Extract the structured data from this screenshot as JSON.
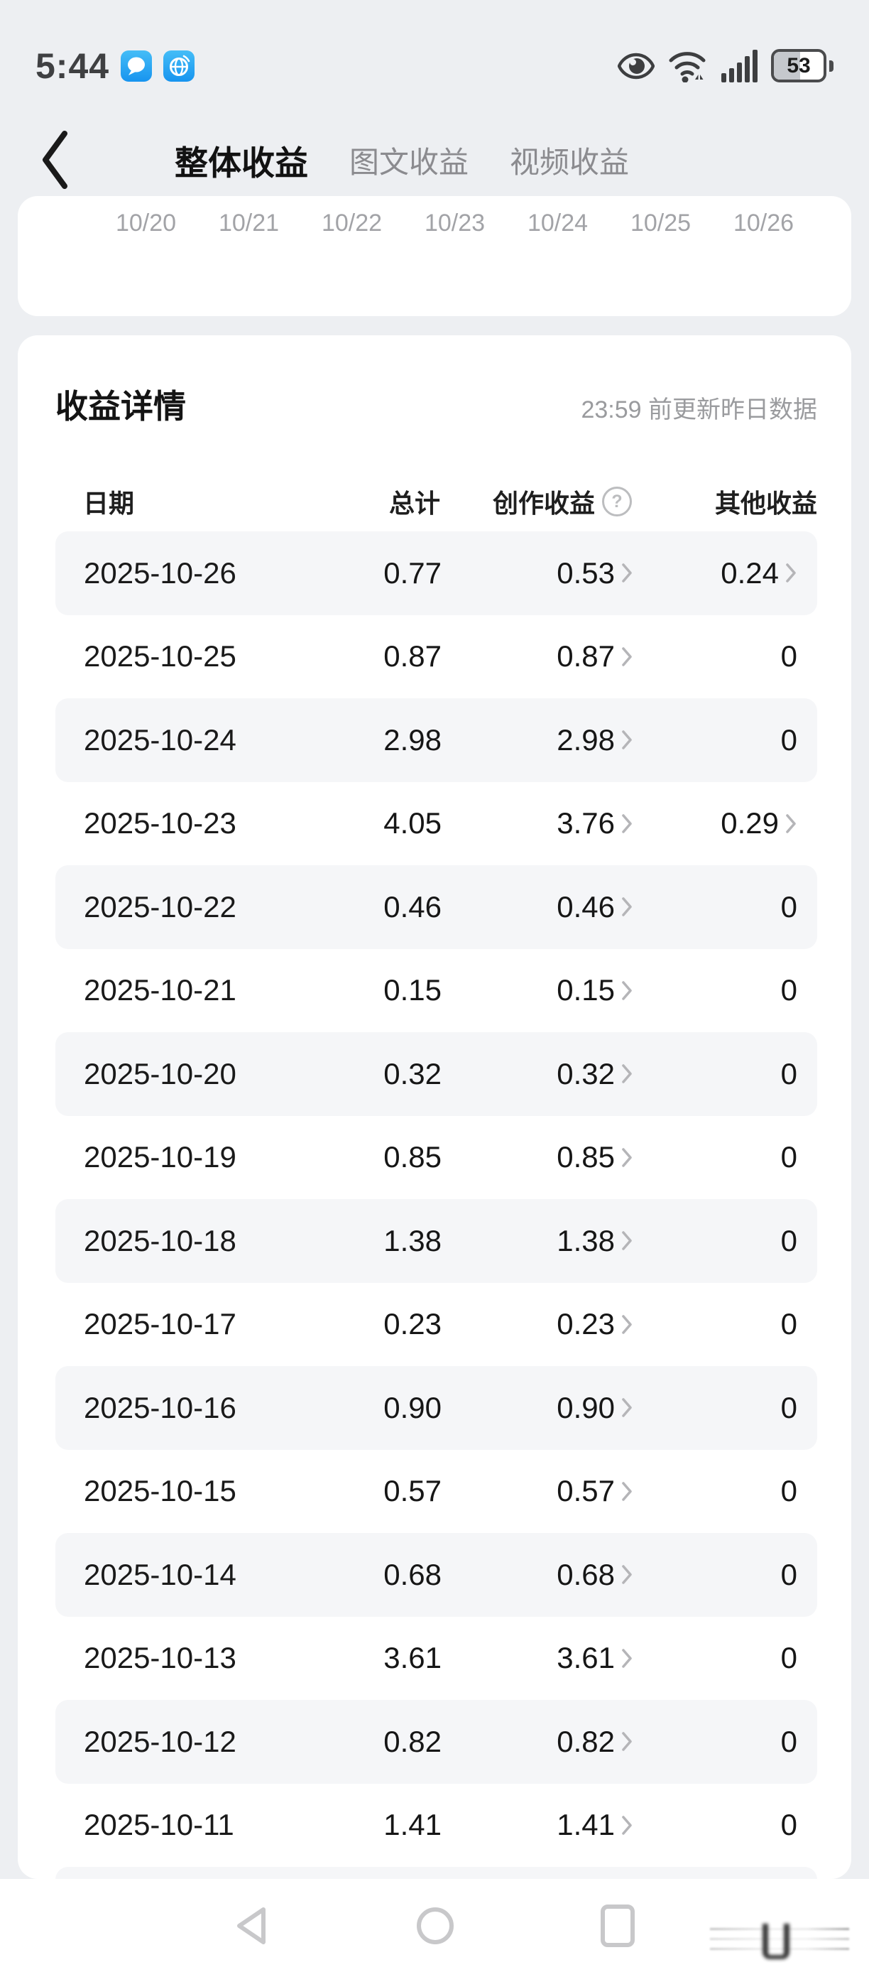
{
  "status_bar": {
    "time": "5:44",
    "battery_percent": "53"
  },
  "nav_header": {
    "tabs": [
      {
        "label": "整体收益",
        "active": true
      },
      {
        "label": "图文收益",
        "active": false
      },
      {
        "label": "视频收益",
        "active": false
      }
    ]
  },
  "chart_card": {
    "x_labels": [
      "10/20",
      "10/21",
      "10/22",
      "10/23",
      "10/24",
      "10/25",
      "10/26"
    ]
  },
  "details_card": {
    "title": "收益详情",
    "update_note": "23:59 前更新昨日数据",
    "columns": {
      "date": "日期",
      "total": "总计",
      "creation": "创作收益",
      "other": "其他收益"
    },
    "help_icon_glyph": "?",
    "rows": [
      {
        "date": "2025-10-26",
        "total": "0.77",
        "creation": "0.53",
        "creation_link": true,
        "other": "0.24",
        "other_link": true
      },
      {
        "date": "2025-10-25",
        "total": "0.87",
        "creation": "0.87",
        "creation_link": true,
        "other": "0",
        "other_link": false
      },
      {
        "date": "2025-10-24",
        "total": "2.98",
        "creation": "2.98",
        "creation_link": true,
        "other": "0",
        "other_link": false
      },
      {
        "date": "2025-10-23",
        "total": "4.05",
        "creation": "3.76",
        "creation_link": true,
        "other": "0.29",
        "other_link": true
      },
      {
        "date": "2025-10-22",
        "total": "0.46",
        "creation": "0.46",
        "creation_link": true,
        "other": "0",
        "other_link": false
      },
      {
        "date": "2025-10-21",
        "total": "0.15",
        "creation": "0.15",
        "creation_link": true,
        "other": "0",
        "other_link": false
      },
      {
        "date": "2025-10-20",
        "total": "0.32",
        "creation": "0.32",
        "creation_link": true,
        "other": "0",
        "other_link": false
      },
      {
        "date": "2025-10-19",
        "total": "0.85",
        "creation": "0.85",
        "creation_link": true,
        "other": "0",
        "other_link": false
      },
      {
        "date": "2025-10-18",
        "total": "1.38",
        "creation": "1.38",
        "creation_link": true,
        "other": "0",
        "other_link": false
      },
      {
        "date": "2025-10-17",
        "total": "0.23",
        "creation": "0.23",
        "creation_link": true,
        "other": "0",
        "other_link": false
      },
      {
        "date": "2025-10-16",
        "total": "0.90",
        "creation": "0.90",
        "creation_link": true,
        "other": "0",
        "other_link": false
      },
      {
        "date": "2025-10-15",
        "total": "0.57",
        "creation": "0.57",
        "creation_link": true,
        "other": "0",
        "other_link": false
      },
      {
        "date": "2025-10-14",
        "total": "0.68",
        "creation": "0.68",
        "creation_link": true,
        "other": "0",
        "other_link": false
      },
      {
        "date": "2025-10-13",
        "total": "3.61",
        "creation": "3.61",
        "creation_link": true,
        "other": "0",
        "other_link": false
      },
      {
        "date": "2025-10-12",
        "total": "0.82",
        "creation": "0.82",
        "creation_link": true,
        "other": "0",
        "other_link": false
      },
      {
        "date": "2025-10-11",
        "total": "1.41",
        "creation": "1.41",
        "creation_link": true,
        "other": "0",
        "other_link": false
      }
    ]
  },
  "colors": {
    "page_bg": "#edeff2",
    "card_bg": "#ffffff",
    "row_alt_bg": "#f5f6f8",
    "app_icon_blue": "#1794ef",
    "muted_text": "#9a9b9e",
    "chevron_gray": "#b5b5b8"
  }
}
